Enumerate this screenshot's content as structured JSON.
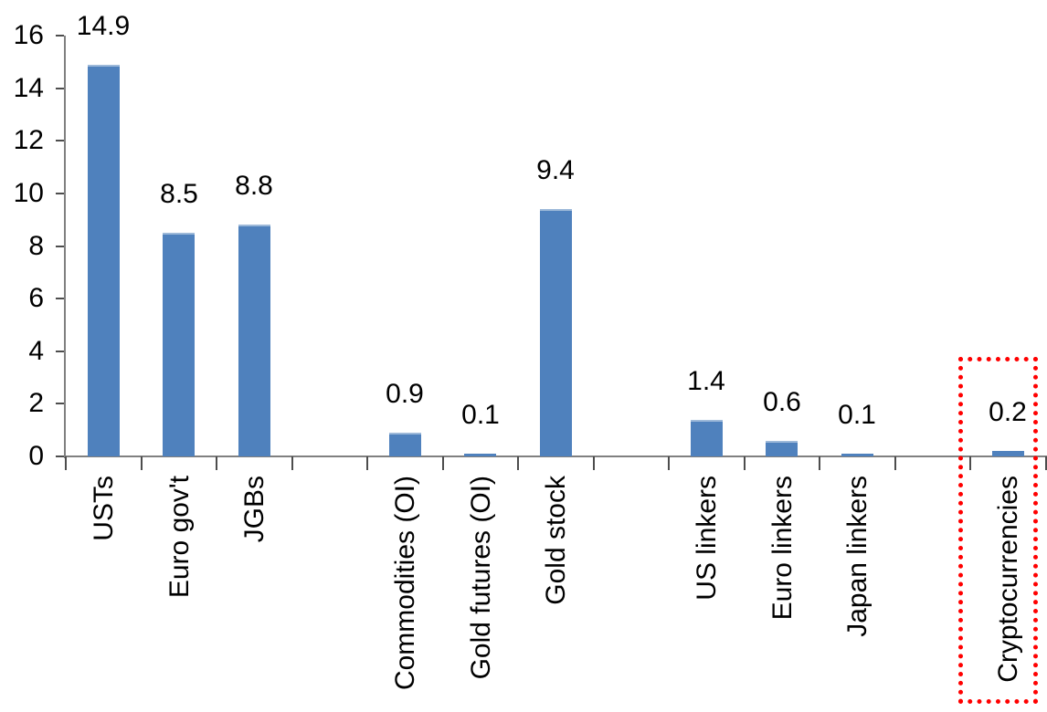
{
  "chart_data": {
    "type": "bar",
    "title": "",
    "xlabel": "",
    "ylabel": "",
    "categories": [
      "USTs",
      "Euro gov't",
      "JGBs",
      "Commodities (OI)",
      "Gold futures (OI)",
      "Gold stock",
      "US linkers",
      "Euro linkers",
      "Japan linkers",
      "Cryptocurrencies"
    ],
    "values": [
      14.9,
      8.5,
      8.8,
      0.9,
      0.1,
      9.4,
      1.4,
      0.6,
      0.1,
      0.2
    ],
    "data_labels": [
      "14.9",
      "8.5",
      "8.8",
      "0.9",
      "0.1",
      "9.4",
      "1.4",
      "0.6",
      "0.1",
      "0.2"
    ],
    "slot_index": [
      0,
      1,
      2,
      4,
      5,
      6,
      8,
      9,
      10,
      12
    ],
    "total_slots": 13,
    "ylim": [
      0,
      16
    ],
    "yticks": [
      0,
      2,
      4,
      6,
      8,
      10,
      12,
      14,
      16
    ],
    "ytick_labels": [
      "0",
      "2",
      "4",
      "6",
      "8",
      "10",
      "12",
      "14",
      "16"
    ],
    "x_label_rotation_deg": -90,
    "grid": false,
    "legend": false,
    "bar_color": "#4F81BD",
    "bar_top_edge_color": "#9DB9D9",
    "axis_line_color": "#808080",
    "tick_color": "#4d4d4d",
    "text_color": "#000000",
    "annotations": [
      {
        "name": "highlight",
        "shape": "dotted-rectangle",
        "color": "#FF0000",
        "around_category": "Cryptocurrencies"
      }
    ]
  }
}
